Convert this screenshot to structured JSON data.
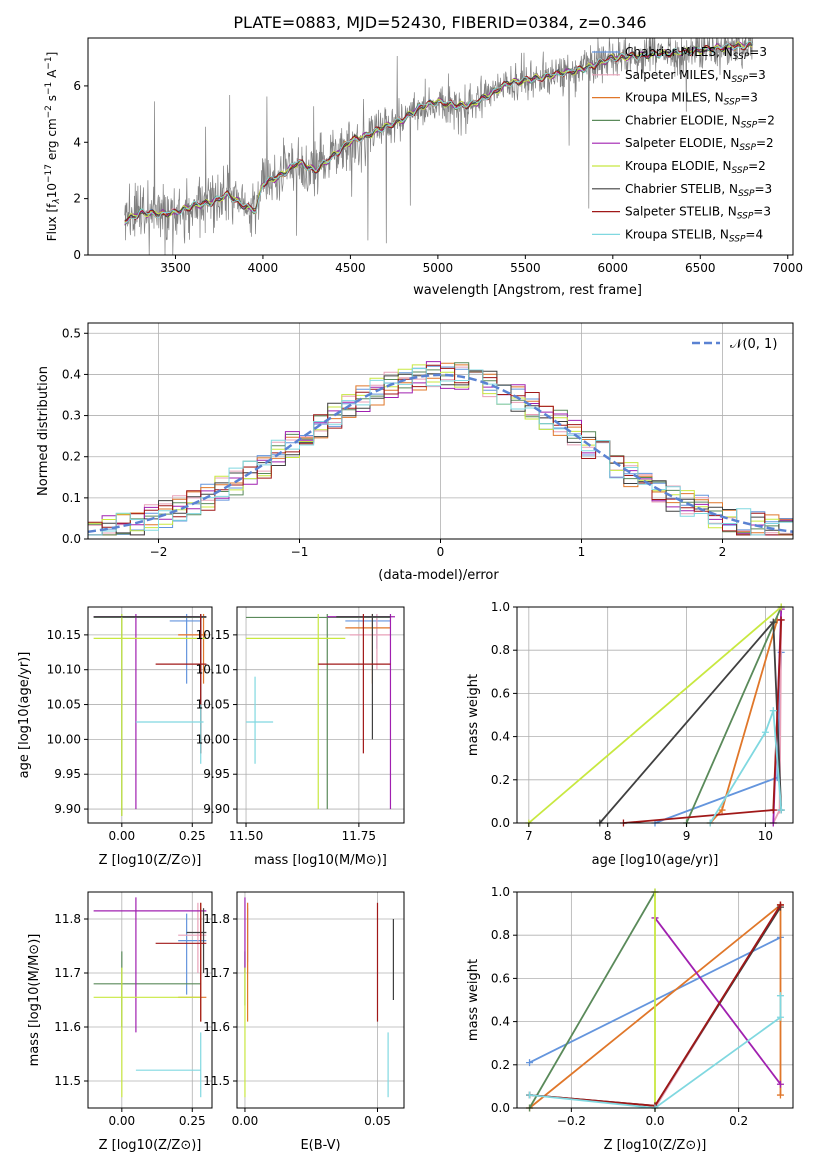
{
  "title": "PLATE=0883, MJD=52430, FIBERID=0384, z=0.346",
  "colors": {
    "chabrier_miles": "#6495dd",
    "salpeter_miles": "#e8a0b8",
    "kroupa_miles": "#e0772a",
    "chabrier_elodie": "#5a8a5a",
    "salpeter_elodie": "#a020b0",
    "kroupa_elodie": "#c8e840",
    "chabrier_stelib": "#404040",
    "salpeter_stelib": "#a01818",
    "kroupa_stelib": "#80d8e0",
    "data": "#808080"
  },
  "chart_data": [
    {
      "id": "spectrum",
      "type": "line",
      "xlabel": "wavelength [Angstrom, rest frame]",
      "ylabel": "Flux [f_λ 10^-17 erg cm^-2 s^-1 A^-1]",
      "xlim": [
        3000,
        7030
      ],
      "ylim": [
        0,
        7.7
      ],
      "xticks": [
        "3500",
        "4000",
        "4500",
        "5000",
        "5500",
        "6000",
        "6500",
        "7000"
      ],
      "yticks": [
        "0",
        "2",
        "4",
        "6"
      ],
      "data_range": [
        3210,
        6800
      ],
      "model_shape": [
        [
          3210,
          1.2
        ],
        [
          3300,
          1.5
        ],
        [
          3400,
          1.45
        ],
        [
          3500,
          1.5
        ],
        [
          3600,
          1.75
        ],
        [
          3700,
          1.85
        ],
        [
          3800,
          2.15
        ],
        [
          3900,
          1.7
        ],
        [
          3960,
          1.6
        ],
        [
          4000,
          2.55
        ],
        [
          4100,
          2.8
        ],
        [
          4200,
          3.3
        ],
        [
          4300,
          3.0
        ],
        [
          4400,
          3.5
        ],
        [
          4500,
          4.05
        ],
        [
          4600,
          4.25
        ],
        [
          4700,
          4.55
        ],
        [
          4800,
          4.8
        ],
        [
          4900,
          5.25
        ],
        [
          5000,
          5.45
        ],
        [
          5100,
          5.3
        ],
        [
          5200,
          5.35
        ],
        [
          5300,
          5.7
        ],
        [
          5400,
          6.1
        ],
        [
          5500,
          6.2
        ],
        [
          5600,
          6.3
        ],
        [
          5700,
          6.45
        ],
        [
          5800,
          6.55
        ],
        [
          5900,
          6.75
        ],
        [
          6000,
          7.0
        ],
        [
          6200,
          7.1
        ],
        [
          6400,
          7.2
        ],
        [
          6600,
          7.35
        ],
        [
          6800,
          7.45
        ]
      ],
      "legend": [
        {
          "label": "Chabrier MILES, N",
          "sub": "SSP",
          "suffix": "=3",
          "color": "#6495dd"
        },
        {
          "label": "Salpeter MILES, N",
          "sub": "SSP",
          "suffix": "=3",
          "color": "#e8a0b8"
        },
        {
          "label": "Kroupa MILES, N",
          "sub": "SSP",
          "suffix": "=3",
          "color": "#e0772a"
        },
        {
          "label": "Chabrier ELODIE, N",
          "sub": "SSP",
          "suffix": "=2",
          "color": "#5a8a5a"
        },
        {
          "label": "Salpeter ELODIE, N",
          "sub": "SSP",
          "suffix": "=2",
          "color": "#a020b0"
        },
        {
          "label": "Kroupa ELODIE, N",
          "sub": "SSP",
          "suffix": "=2",
          "color": "#c8e840"
        },
        {
          "label": "Chabrier STELIB, N",
          "sub": "SSP",
          "suffix": "=3",
          "color": "#404040"
        },
        {
          "label": "Salpeter STELIB, N",
          "sub": "SSP",
          "suffix": "=3",
          "color": "#a01818"
        },
        {
          "label": "Kroupa STELIB, N",
          "sub": "SSP",
          "suffix": "=4",
          "color": "#80d8e0"
        }
      ]
    },
    {
      "id": "residuals",
      "type": "line",
      "xlabel": "(data-model)/error",
      "ylabel": "Normed distribution",
      "xlim": [
        -2.5,
        2.5
      ],
      "ylim": [
        0,
        0.525
      ],
      "xticks": [
        "−2",
        "−1",
        "0",
        "1",
        "2"
      ],
      "xtick_values": [
        -2,
        -1,
        0,
        1,
        2
      ],
      "yticks": [
        "0.0",
        "0.1",
        "0.2",
        "0.3",
        "0.4",
        "0.5"
      ],
      "ytick_values": [
        0,
        0.1,
        0.2,
        0.3,
        0.4,
        0.5
      ],
      "legend_label": "𝒩(0, 1)",
      "curve_color": "#5a82d2",
      "bin_width": 0.1
    },
    {
      "id": "age_vs_Z",
      "type": "scatter",
      "xlabel": "Z [log10(Z/Z⊙)]",
      "ylabel": "age [log10(age/yr)]",
      "xlim": [
        -0.12,
        0.32
      ],
      "ylim": [
        9.88,
        10.19
      ],
      "xticks": [
        "0.00",
        "0.25"
      ],
      "xtick_values": [
        0,
        0.25
      ],
      "yticks": [
        "9.90",
        "9.95",
        "10.00",
        "10.05",
        "10.10",
        "10.15"
      ],
      "ytick_values": [
        9.9,
        9.95,
        10.0,
        10.05,
        10.1,
        10.15
      ],
      "points": [
        {
          "c": "#6495dd",
          "x": 0.23,
          "y": 10.17,
          "xe": [
            0.17,
            0.28
          ],
          "ye": [
            10.08,
            10.18
          ]
        },
        {
          "c": "#e8a0b8",
          "x": 0.28,
          "y": 10.15,
          "xe": [
            0.2,
            0.3
          ],
          "ye": [
            10.1,
            10.18
          ]
        },
        {
          "c": "#e0772a",
          "x": 0.29,
          "y": 10.15,
          "xe": [
            0.2,
            0.3
          ],
          "ye": [
            10.08,
            10.18
          ]
        },
        {
          "c": "#5a8a5a",
          "x": 0.0,
          "y": 10.175,
          "xe": [
            -0.1,
            0.3
          ],
          "ye": [
            9.89,
            10.18
          ]
        },
        {
          "c": "#a020b0",
          "x": 0.05,
          "y": 10.176,
          "xe": [
            -0.1,
            0.3
          ],
          "ye": [
            9.9,
            10.18
          ]
        },
        {
          "c": "#c8e840",
          "x": 0.0,
          "y": 10.145,
          "xe": [
            -0.1,
            0.3
          ],
          "ye": [
            9.89,
            10.18
          ]
        },
        {
          "c": "#404040",
          "x": 0.28,
          "y": 10.176,
          "xe": [
            -0.1,
            0.3
          ],
          "ye": [
            9.98,
            10.18
          ]
        },
        {
          "c": "#a01818",
          "x": 0.28,
          "y": 10.108,
          "xe": [
            0.12,
            0.3
          ],
          "ye": [
            9.98,
            10.18
          ]
        },
        {
          "c": "#80d8e0",
          "x": 0.28,
          "y": 10.025,
          "xe": [
            0.05,
            0.29
          ],
          "ye": [
            9.965,
            10.05
          ]
        }
      ]
    },
    {
      "id": "age_vs_mass",
      "type": "scatter",
      "xlabel": "mass [log10(M/M⊙)]",
      "ylabel": "",
      "xlim": [
        11.48,
        11.85
      ],
      "ylim": [
        9.88,
        10.19
      ],
      "xticks": [
        "11.50",
        "11.75"
      ],
      "xtick_values": [
        11.5,
        11.75
      ],
      "yticks": [
        "9.90",
        "9.95",
        "10.00",
        "10.05",
        "10.10",
        "10.15"
      ],
      "ytick_values": [
        9.9,
        9.95,
        10.0,
        10.05,
        10.1,
        10.15
      ],
      "points": [
        {
          "c": "#6495dd",
          "x": 11.79,
          "y": 10.17,
          "xe": [
            11.72,
            11.82
          ],
          "ye": [
            10.13,
            10.18
          ]
        },
        {
          "c": "#e8a0b8",
          "x": 11.79,
          "y": 10.15,
          "xe": [
            11.73,
            11.82
          ],
          "ye": [
            10.1,
            10.18
          ]
        },
        {
          "c": "#e0772a",
          "x": 11.78,
          "y": 10.16,
          "xe": [
            11.72,
            11.82
          ],
          "ye": [
            10.08,
            10.18
          ]
        },
        {
          "c": "#5a8a5a",
          "x": 11.68,
          "y": 10.175,
          "xe": [
            11.5,
            11.82
          ],
          "ye": [
            9.9,
            10.18
          ]
        },
        {
          "c": "#a020b0",
          "x": 11.82,
          "y": 10.176,
          "xe": [
            11.68,
            11.83
          ],
          "ye": [
            9.9,
            10.18
          ]
        },
        {
          "c": "#c8e840",
          "x": 11.66,
          "y": 10.145,
          "xe": [
            11.5,
            11.72
          ],
          "ye": [
            9.9,
            10.18
          ]
        },
        {
          "c": "#404040",
          "x": 11.78,
          "y": 10.176,
          "xe": [
            11.7,
            11.82
          ],
          "ye": [
            10.0,
            10.18
          ]
        },
        {
          "c": "#a01818",
          "x": 11.76,
          "y": 10.108,
          "xe": [
            11.66,
            11.82
          ],
          "ye": [
            9.98,
            10.18
          ]
        },
        {
          "c": "#80d8e0",
          "x": 11.52,
          "y": 10.025,
          "xe": [
            11.5,
            11.56
          ],
          "ye": [
            9.965,
            10.09
          ]
        }
      ]
    },
    {
      "id": "weight_vs_age",
      "type": "line",
      "xlabel": "age [log10(age/yr)]",
      "ylabel": "mass weight",
      "xlim": [
        6.85,
        10.35
      ],
      "ylim": [
        0,
        1
      ],
      "xticks": [
        "7",
        "8",
        "9",
        "10"
      ],
      "xtick_values": [
        7,
        8,
        9,
        10
      ],
      "yticks": [
        "0.0",
        "0.2",
        "0.4",
        "0.6",
        "0.8",
        "1.0"
      ],
      "ytick_values": [
        0,
        0.2,
        0.4,
        0.6,
        0.8,
        1.0
      ],
      "series": [
        {
          "c": "#6495dd",
          "x": [
            8.6,
            10.15,
            10.2
          ],
          "y": [
            0,
            0.21,
            0.79
          ]
        },
        {
          "c": "#e8a0b8",
          "x": [
            10.1,
            10.18,
            10.2
          ],
          "y": [
            0,
            0.06,
            0.94
          ]
        },
        {
          "c": "#e0772a",
          "x": [
            9.3,
            9.45,
            10.15
          ],
          "y": [
            0,
            0.06,
            0.94
          ]
        },
        {
          "c": "#5a8a5a",
          "x": [
            9.0,
            10.2
          ],
          "y": [
            0,
            1
          ]
        },
        {
          "c": "#a020b0",
          "x": [
            10.1,
            10.2
          ],
          "y": [
            0.0,
            0.99
          ]
        },
        {
          "c": "#c8e840",
          "x": [
            7.0,
            10.2
          ],
          "y": [
            0,
            1
          ]
        },
        {
          "c": "#404040",
          "x": [
            7.9,
            10.1,
            10.2
          ],
          "y": [
            0,
            0.93,
            0.06
          ]
        },
        {
          "c": "#a01818",
          "x": [
            8.2,
            10.1,
            10.2
          ],
          "y": [
            0,
            0.06,
            0.94
          ]
        },
        {
          "c": "#80d8e0",
          "x": [
            9.3,
            10.0,
            10.1,
            10.2
          ],
          "y": [
            0,
            0.42,
            0.52,
            0.06
          ]
        }
      ]
    },
    {
      "id": "mass_vs_Z",
      "type": "scatter",
      "xlabel": "Z [log10(Z/Z⊙)]",
      "ylabel": "mass [log10(M/M⊙)]",
      "xlim": [
        -0.12,
        0.32
      ],
      "ylim": [
        11.45,
        11.85
      ],
      "xticks": [
        "0.00",
        "0.25"
      ],
      "xtick_values": [
        0,
        0.25
      ],
      "yticks": [
        "11.5",
        "11.6",
        "11.7",
        "11.8"
      ],
      "ytick_values": [
        11.5,
        11.6,
        11.7,
        11.8
      ],
      "points": [
        {
          "c": "#6495dd",
          "x": 0.23,
          "y": 11.76,
          "xe": [
            0.2,
            0.3
          ],
          "ye": [
            11.66,
            11.81
          ]
        },
        {
          "c": "#e8a0b8",
          "x": 0.27,
          "y": 11.77,
          "xe": [
            0.2,
            0.3
          ],
          "ye": [
            11.7,
            11.83
          ]
        },
        {
          "c": "#e0772a",
          "x": 0.28,
          "y": 11.655,
          "xe": [
            0.2,
            0.3
          ],
          "ye": [
            11.61,
            11.83
          ]
        },
        {
          "c": "#5a8a5a",
          "x": 0.0,
          "y": 11.68,
          "xe": [
            -0.1,
            0.28
          ],
          "ye": [
            11.6,
            11.74
          ]
        },
        {
          "c": "#a020b0",
          "x": 0.05,
          "y": 11.815,
          "xe": [
            -0.1,
            0.3
          ],
          "ye": [
            11.59,
            11.84
          ]
        },
        {
          "c": "#c8e840",
          "x": 0.0,
          "y": 11.655,
          "xe": [
            -0.1,
            0.28
          ],
          "ye": [
            11.47,
            11.71
          ]
        },
        {
          "c": "#404040",
          "x": 0.29,
          "y": 11.775,
          "xe": [
            0.23,
            0.3
          ],
          "ye": [
            11.7,
            11.82
          ]
        },
        {
          "c": "#a01818",
          "x": 0.28,
          "y": 11.755,
          "xe": [
            0.12,
            0.3
          ],
          "ye": [
            11.61,
            11.83
          ]
        },
        {
          "c": "#80d8e0",
          "x": 0.28,
          "y": 11.52,
          "xe": [
            0.05,
            0.28
          ],
          "ye": [
            11.47,
            11.59
          ]
        }
      ]
    },
    {
      "id": "mass_vs_ebv",
      "type": "scatter",
      "xlabel": "E(B-V)",
      "ylabel": "",
      "xlim": [
        -0.003,
        0.06
      ],
      "ylim": [
        11.45,
        11.85
      ],
      "xticks": [
        "0.00",
        "0.05"
      ],
      "xtick_values": [
        0,
        0.05
      ],
      "yticks": [
        "11.5",
        "11.6",
        "11.7",
        "11.8"
      ],
      "ytick_values": [
        11.5,
        11.6,
        11.7,
        11.8
      ],
      "points": [
        {
          "c": "#6495dd",
          "x": 0.001,
          "y": 11.76,
          "xe": [
            0.001,
            0.001
          ],
          "ye": [
            11.72,
            11.82
          ]
        },
        {
          "c": "#e8a0b8",
          "x": 0.001,
          "y": 11.77,
          "xe": [
            0.001,
            0.001
          ],
          "ye": [
            11.7,
            11.83
          ]
        },
        {
          "c": "#e0772a",
          "x": 0.001,
          "y": 11.655,
          "xe": [
            0.001,
            0.001
          ],
          "ye": [
            11.61,
            11.83
          ]
        },
        {
          "c": "#5a8a5a",
          "x": 0.0,
          "y": 11.68,
          "xe": [
            0,
            0
          ],
          "ye": [
            11.64,
            11.74
          ]
        },
        {
          "c": "#a020b0",
          "x": 0.0,
          "y": 11.815,
          "xe": [
            0,
            0
          ],
          "ye": [
            11.7,
            11.84
          ]
        },
        {
          "c": "#c8e840",
          "x": 0.0,
          "y": 11.655,
          "xe": [
            0,
            0
          ],
          "ye": [
            11.47,
            11.71
          ]
        },
        {
          "c": "#404040",
          "x": 0.056,
          "y": 11.72,
          "xe": [
            0.056,
            0.056
          ],
          "ye": [
            11.65,
            11.8
          ]
        },
        {
          "c": "#a01818",
          "x": 0.05,
          "y": 11.72,
          "xe": [
            0.05,
            0.05
          ],
          "ye": [
            11.61,
            11.83
          ]
        },
        {
          "c": "#80d8e0",
          "x": 0.054,
          "y": 11.52,
          "xe": [
            0.054,
            0.054
          ],
          "ye": [
            11.47,
            11.59
          ]
        }
      ]
    },
    {
      "id": "weight_vs_Z",
      "type": "line",
      "xlabel": "Z [log10(Z/Z⊙)]",
      "ylabel": "mass weight",
      "xlim": [
        -0.33,
        0.33
      ],
      "ylim": [
        0,
        1
      ],
      "xticks": [
        "−0.2",
        "0.0",
        "0.2"
      ],
      "xtick_values": [
        -0.2,
        0,
        0.2
      ],
      "yticks": [
        "0.0",
        "0.2",
        "0.4",
        "0.6",
        "0.8",
        "1.0"
      ],
      "ytick_values": [
        0,
        0.2,
        0.4,
        0.6,
        0.8,
        1.0
      ],
      "series": [
        {
          "c": "#6495dd",
          "x": [
            -0.3,
            0.3
          ],
          "y": [
            0.21,
            0.79
          ]
        },
        {
          "c": "#e8a0b8",
          "x": [
            0.0,
            0.3
          ],
          "y": [
            0.0,
            0.94
          ]
        },
        {
          "c": "#e0772a",
          "x": [
            -0.3,
            0.3,
            0.3
          ],
          "y": [
            0.0,
            0.94,
            0.06
          ]
        },
        {
          "c": "#5a8a5a",
          "x": [
            -0.3,
            0.0
          ],
          "y": [
            0.0,
            1.0
          ]
        },
        {
          "c": "#a020b0",
          "x": [
            0.0,
            0.3
          ],
          "y": [
            0.88,
            0.11
          ]
        },
        {
          "c": "#c8e840",
          "x": [
            0.0,
            0.0
          ],
          "y": [
            0.0,
            1.0
          ]
        },
        {
          "c": "#404040",
          "x": [
            -0.3,
            0.0,
            0.3
          ],
          "y": [
            0.06,
            0.01,
            0.93
          ]
        },
        {
          "c": "#a01818",
          "x": [
            -0.3,
            0.0,
            0.3
          ],
          "y": [
            0.06,
            0.01,
            0.94
          ]
        },
        {
          "c": "#80d8e0",
          "x": [
            -0.3,
            0.0,
            0.3,
            0.3
          ],
          "y": [
            0.06,
            0.0,
            0.42,
            0.52
          ]
        }
      ]
    }
  ]
}
